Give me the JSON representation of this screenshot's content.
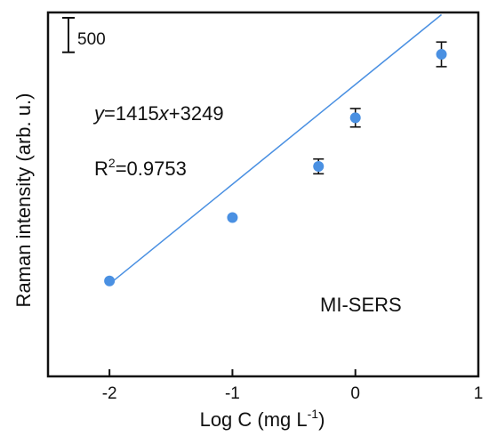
{
  "chart_data": {
    "type": "scatter",
    "xlabel": "Log C (mg L",
    "xlabel_sup": "-1",
    "xlabel_tail": ")",
    "ylabel": "Raman intensity (arb. u.)",
    "xlim": [
      -2.5,
      1
    ],
    "ylim": [
      -15.5,
      43.6
    ],
    "xticks": [
      -2,
      -1,
      0,
      1
    ],
    "xtick_labels": [
      "-2",
      "-1",
      "0",
      "1"
    ],
    "y_tick_labels_shown": false,
    "series": [
      {
        "name": "MI-SERS",
        "color": "#4a90e2",
        "x": [
          -2,
          -1,
          -0.3,
          0,
          0.7
        ],
        "y": [
          0,
          10.3,
          18.6,
          26.5,
          36.8
        ],
        "err": [
          0,
          0,
          1.2,
          1.5,
          2.0
        ]
      }
    ],
    "fit": {
      "slope": 16.2,
      "intercept": 31.9,
      "x_range": [
        -2,
        0.7
      ],
      "color": "#4a90e2"
    },
    "scale_bar": {
      "value_data_units": 5.6,
      "label": "500"
    },
    "annotations": {
      "eq_y": "y",
      "eq_mid": "=1415",
      "eq_x": "x",
      "eq_tail": "+3249",
      "r2_base": "R",
      "r2_sup": "2",
      "r2_value": "=0.9753",
      "series_label": "MI-SERS"
    },
    "grid": false
  }
}
